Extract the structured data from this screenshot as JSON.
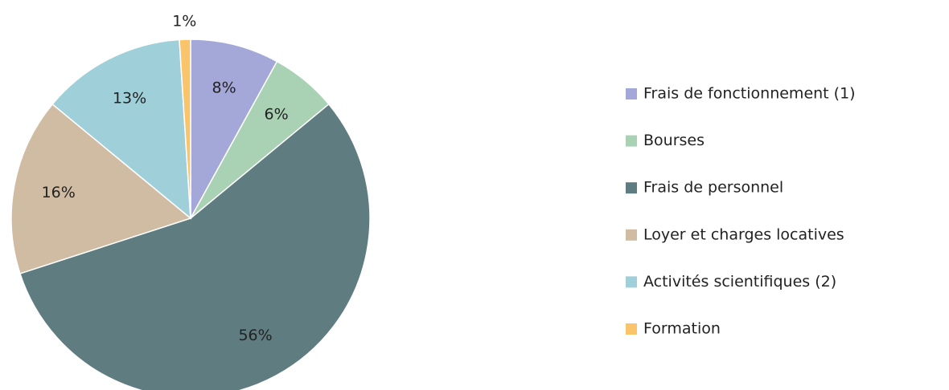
{
  "chart_data": {
    "type": "pie",
    "categories": [
      "Frais de fonctionnement (1)",
      "Bourses",
      "Frais de personnel",
      "Loyer et charges locatives",
      "Activités scientifiques (2)",
      "Formation"
    ],
    "values": [
      8,
      6,
      56,
      16,
      13,
      1
    ],
    "value_labels": [
      "8%",
      "6%",
      "56%",
      "16%",
      "13%",
      "1%"
    ],
    "colors": [
      "#a3a8d9",
      "#a9d1b3",
      "#5f7c80",
      "#cfbca3",
      "#9fd0d9",
      "#f9c46a"
    ],
    "legend": "right"
  }
}
